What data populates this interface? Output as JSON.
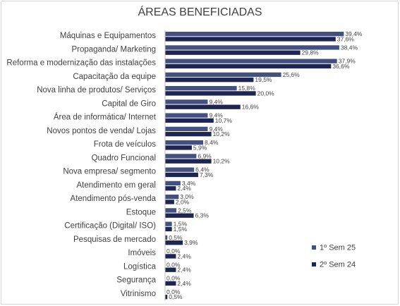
{
  "chart_data": {
    "type": "bar",
    "orientation": "horizontal",
    "title": "ÁREAS BENEFICIADAS",
    "categories": [
      "Máquinas e Equipamentos",
      "Propaganda/ Marketing",
      "Reforma e modernização das instalações",
      "Capacitação da equipe",
      "Nova linha de produtos/ Serviços",
      "Capital de Giro",
      "Área de informática/ Internet",
      "Novos pontos de venda/ Lojas",
      "Frota de veículos",
      "Quadro Funcional",
      "Nova empresa/ segmento",
      "Atendimento em geral",
      "Atendimento pós-venda",
      "Estoque",
      "Certificação (Digital/ ISO)",
      "Pesquisas de mercado",
      "Imóveis",
      "Logística",
      "Segurança",
      "Vitrinismo"
    ],
    "series": [
      {
        "name": "1º Sem 25",
        "color": "#44507f",
        "values": [
          39.4,
          38.4,
          37.9,
          25.6,
          15.8,
          9.4,
          9.4,
          9.4,
          8.4,
          6.9,
          6.4,
          3.4,
          3.0,
          2.5,
          1.5,
          0.5,
          0.0,
          0.0,
          0.0,
          0.0
        ],
        "labels": [
          "39,4%",
          "38,4%",
          "37,9%",
          "25,6%",
          "15,8%",
          "9,4%",
          "9,4%",
          "9,4%",
          "8,4%",
          "6,9%",
          "6,4%",
          "3,4%",
          "3,0%",
          "2,5%",
          "1,5%",
          "0,5%",
          "0,0%",
          "0,0%",
          "0,0%",
          "0,0%"
        ]
      },
      {
        "name": "2º Sem 24",
        "color": "#1e2553",
        "values": [
          37.6,
          29.8,
          36.6,
          19.5,
          20.0,
          16.6,
          10.7,
          10.2,
          5.9,
          10.2,
          7.3,
          2.4,
          2.0,
          6.3,
          1.5,
          3.9,
          2.4,
          2.4,
          2.4,
          0.5
        ],
        "labels": [
          "37,6%",
          "29,8%",
          "36,6%",
          "19,5%",
          "20,0%",
          "16,6%",
          "10,7%",
          "10,2%",
          "5,9%",
          "10,2%",
          "7,3%",
          "2,4%",
          "2,0%",
          "6,3%",
          "1,5%",
          "3,9%",
          "2,4%",
          "2,4%",
          "2,4%",
          "0,5%"
        ]
      }
    ],
    "xlim": [
      0,
      40
    ],
    "grid": false,
    "legend_position": "bottom-right"
  }
}
